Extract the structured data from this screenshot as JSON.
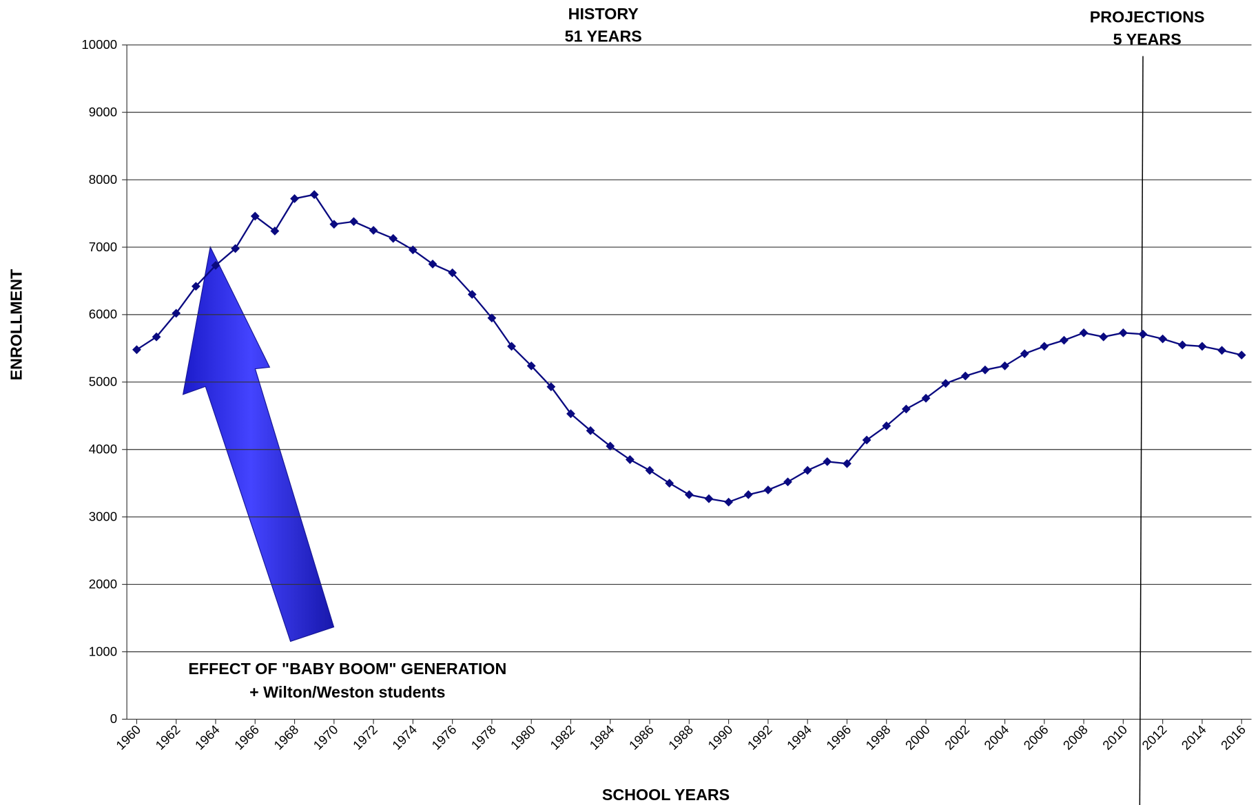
{
  "chart_data": {
    "type": "line",
    "x": [
      1960,
      1961,
      1962,
      1963,
      1964,
      1965,
      1966,
      1967,
      1968,
      1969,
      1970,
      1971,
      1972,
      1973,
      1974,
      1975,
      1976,
      1977,
      1978,
      1979,
      1980,
      1981,
      1982,
      1983,
      1984,
      1985,
      1986,
      1987,
      1988,
      1989,
      1990,
      1991,
      1992,
      1993,
      1994,
      1995,
      1996,
      1997,
      1998,
      1999,
      2000,
      2001,
      2002,
      2003,
      2004,
      2005,
      2006,
      2007,
      2008,
      2009,
      2010,
      2011,
      2012,
      2013,
      2014,
      2015,
      2016
    ],
    "series": [
      {
        "color": "#0a0a80",
        "values": [
          5480,
          5670,
          6020,
          6420,
          6730,
          6980,
          7460,
          7240,
          7720,
          7780,
          7340,
          7380,
          7250,
          7130,
          6960,
          6750,
          6620,
          6300,
          5950,
          5530,
          5240,
          4930,
          4530,
          4280,
          4050,
          3850,
          3690,
          3500,
          3330,
          3270,
          3220,
          3330,
          3400,
          3520,
          3690,
          3820,
          3790,
          4140,
          4350,
          4600,
          4760,
          4980,
          5090,
          5180,
          5240,
          5420,
          5530,
          5620,
          5730,
          5670,
          5730,
          5710,
          5640,
          5550,
          5530,
          5470,
          5400
        ]
      }
    ],
    "xlim": [
      1959.5,
      2016.5
    ],
    "xticks": [
      1960,
      1962,
      1964,
      1966,
      1968,
      1970,
      1972,
      1974,
      1976,
      1978,
      1980,
      1982,
      1984,
      1986,
      1988,
      1990,
      1992,
      1994,
      1996,
      1998,
      2000,
      2002,
      2004,
      2006,
      2008,
      2010,
      2012,
      2014,
      2016
    ],
    "ylim": [
      0,
      10000
    ],
    "yticks": [
      0,
      1000,
      2000,
      3000,
      4000,
      5000,
      6000,
      7000,
      8000,
      9000,
      10000
    ],
    "grid": true,
    "projection_start": 2011,
    "x_label": "SCHOOL YEARS",
    "y_label": "ENROLLMENT",
    "annotations": [
      {
        "lines": [
          "HISTORY",
          "51 YEARS"
        ]
      },
      {
        "lines": [
          "PROJECTIONS",
          "5 YEARS"
        ]
      },
      {
        "lines": [
          "EFFECT OF \"BABY BOOM\" GENERATION",
          "+ Wilton/Weston students"
        ]
      }
    ]
  }
}
